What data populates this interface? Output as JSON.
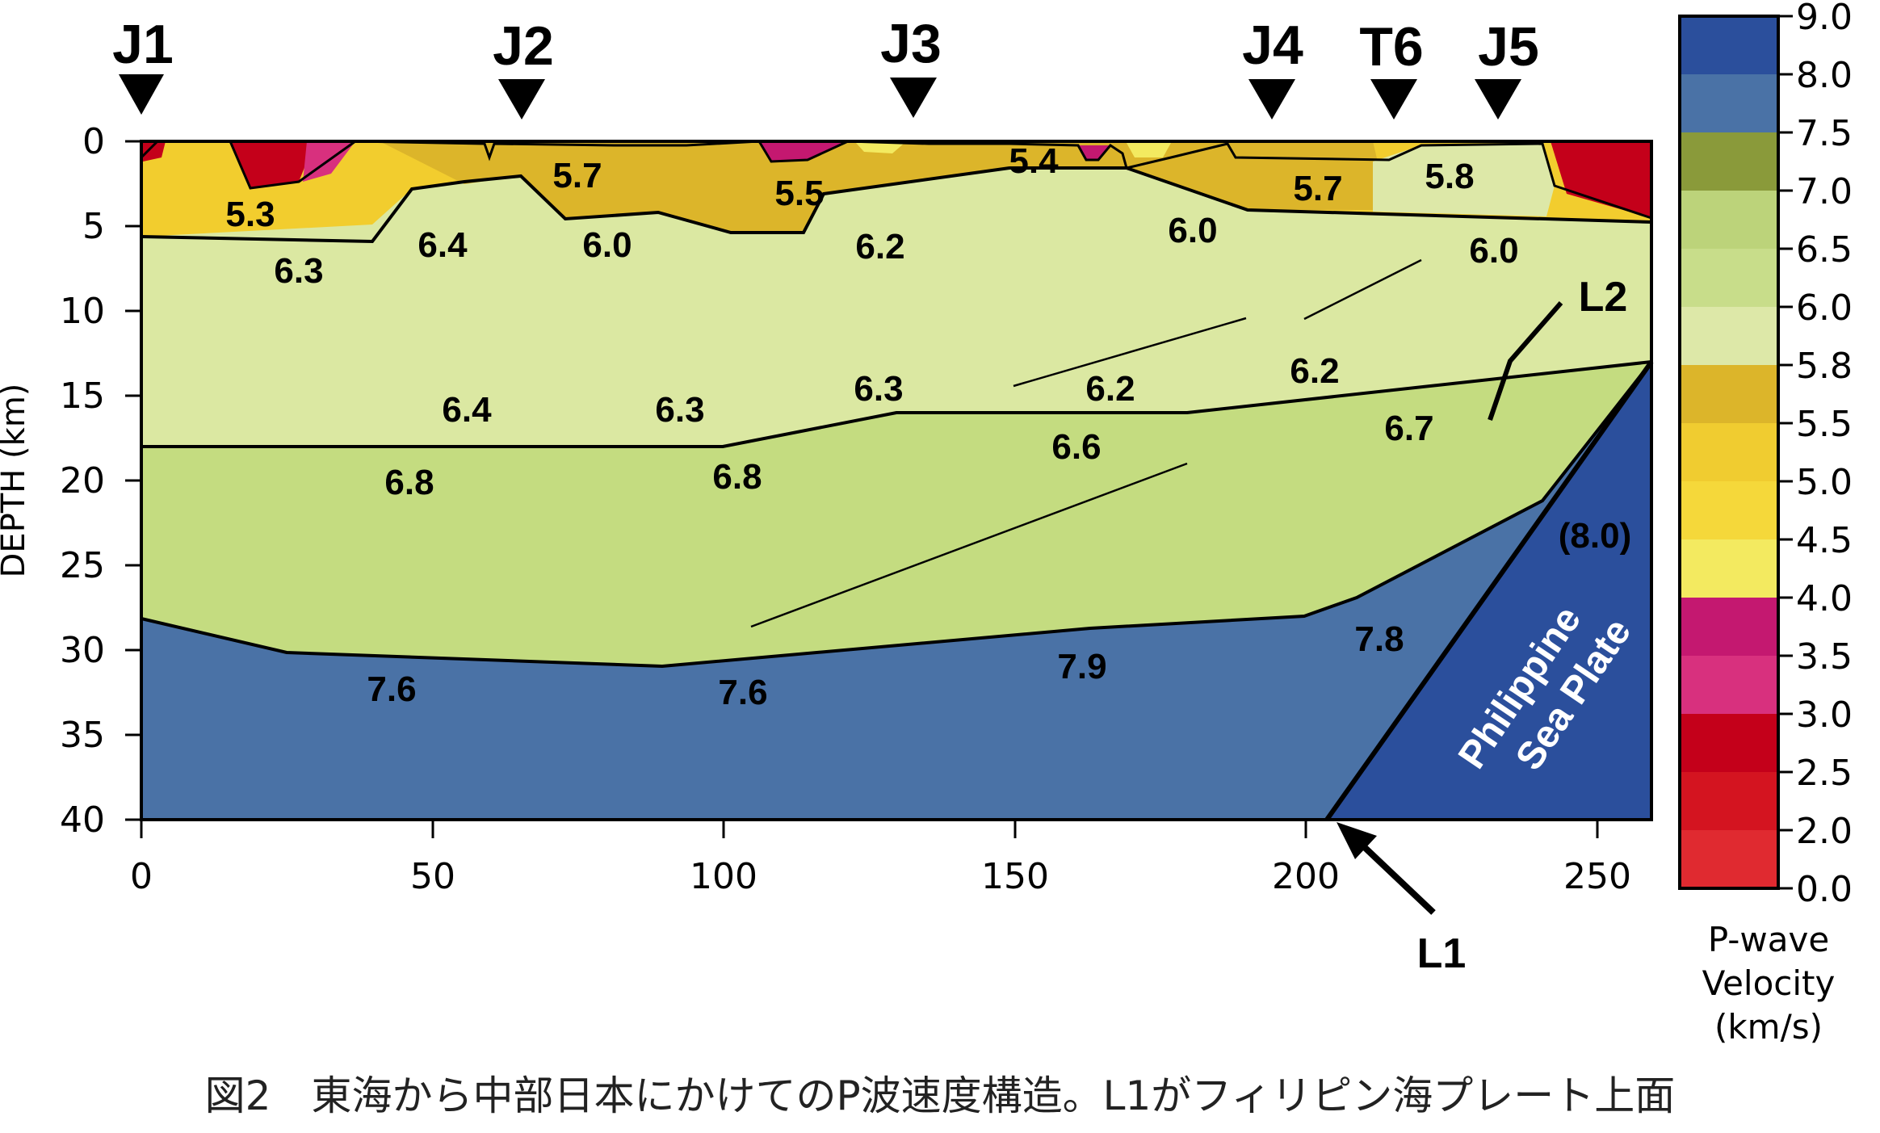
{
  "stations": [
    "J1",
    "J2",
    "J3",
    "J4",
    "T6",
    "J5"
  ],
  "axes": {
    "y_label": "DEPTH (km)",
    "y_ticks": [
      "0",
      "5",
      "10",
      "15",
      "20",
      "25",
      "30",
      "35",
      "40"
    ],
    "x_ticks": [
      "0",
      "50",
      "100",
      "150",
      "200",
      "250"
    ]
  },
  "velocity_labels": [
    "5.3",
    "5.7",
    "5.5",
    "5.4",
    "5.7",
    "5.8",
    "6.3",
    "6.4",
    "6.0",
    "6.2",
    "6.0",
    "6.0",
    "6.4",
    "6.3",
    "6.3",
    "6.2",
    "6.2",
    "6.7",
    "6.6",
    "6.8",
    "6.8",
    "7.6",
    "7.6",
    "7.9",
    "7.8",
    "(8.0)"
  ],
  "annotations": {
    "l1": "L1",
    "l2": "L2",
    "plate_line1": "Philippine",
    "plate_line2": "Sea Plate"
  },
  "colorbar": {
    "ticks": [
      "9.0",
      "8.0",
      "7.5",
      "7.0",
      "6.5",
      "6.0",
      "5.8",
      "5.5",
      "5.0",
      "4.5",
      "4.0",
      "3.5",
      "3.0",
      "2.5",
      "2.0",
      "0.0"
    ],
    "title_line1": "P-wave",
    "title_line2": "Velocity",
    "title_line3": "(km/s)",
    "colors": [
      "#2b4f9c",
      "#4a72a6",
      "#8a9a3a",
      "#bcd37a",
      "#c8dd8a",
      "#dde8a8",
      "#dcb52a",
      "#f0cc30",
      "#f5d83a",
      "#f3ea60",
      "#c41870",
      "#d8307e",
      "#c4001a",
      "#d41420",
      "#e02a30"
    ]
  },
  "caption": "図2　東海から中部日本にかけてのP波速度構造。L1がフィリピン海プレート上面"
}
